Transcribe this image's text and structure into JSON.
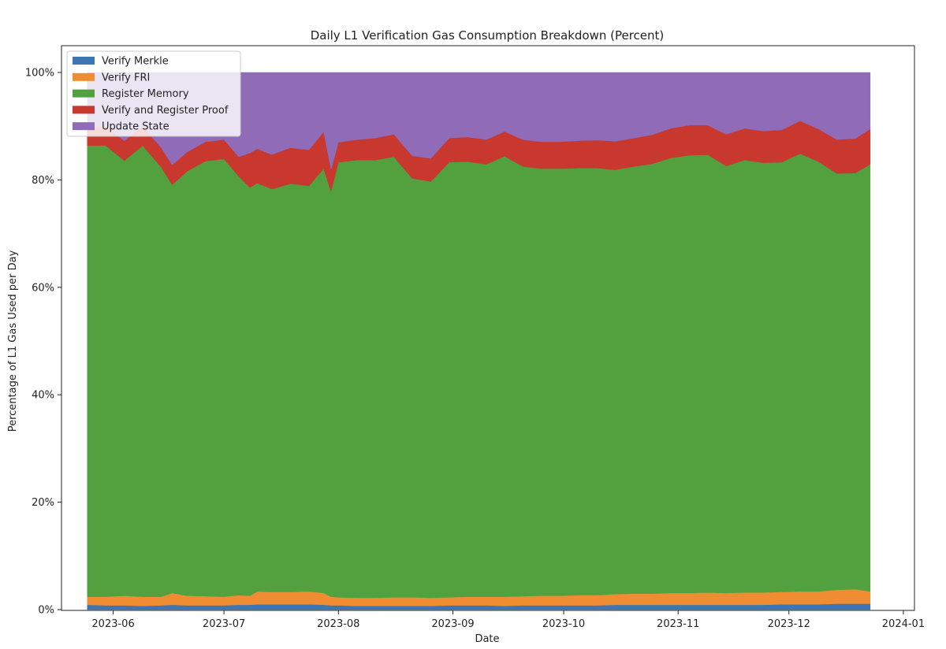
{
  "chart_data": {
    "type": "area",
    "stacked": true,
    "normalized_percent": true,
    "title": "Daily L1 Verification Gas Consumption Breakdown (Percent)",
    "xlabel": "Date",
    "ylabel": "Percentage of L1 Gas Used per Day",
    "ylim": [
      0,
      100
    ],
    "xlim": [
      "2023-05-18",
      "2024-01-04"
    ],
    "x_tick_labels": [
      "2023-06",
      "2023-07",
      "2023-08",
      "2023-09",
      "2023-10",
      "2023-11",
      "2023-12",
      "2024-01"
    ],
    "x_tick_dates": [
      "2023-06-01",
      "2023-07-01",
      "2023-08-01",
      "2023-09-01",
      "2023-10-01",
      "2023-11-01",
      "2023-12-01",
      "2024-01-01"
    ],
    "y_ticks": [
      0,
      20,
      40,
      60,
      80,
      100
    ],
    "y_tick_labels": [
      "0%",
      "20%",
      "40%",
      "60%",
      "80%",
      "100%"
    ],
    "legend_position": "upper-left",
    "grid": false,
    "x": [
      "2023-05-25",
      "2023-05-30",
      "2023-06-04",
      "2023-06-09",
      "2023-06-14",
      "2023-06-17",
      "2023-06-21",
      "2023-06-26",
      "2023-07-01",
      "2023-07-05",
      "2023-07-08",
      "2023-07-10",
      "2023-07-14",
      "2023-07-19",
      "2023-07-24",
      "2023-07-28",
      "2023-07-30",
      "2023-08-01",
      "2023-08-06",
      "2023-08-11",
      "2023-08-16",
      "2023-08-21",
      "2023-08-26",
      "2023-08-31",
      "2023-09-05",
      "2023-09-10",
      "2023-09-15",
      "2023-09-20",
      "2023-09-25",
      "2023-09-30",
      "2023-10-05",
      "2023-10-10",
      "2023-10-15",
      "2023-10-20",
      "2023-10-25",
      "2023-10-30",
      "2023-11-04",
      "2023-11-09",
      "2023-11-14",
      "2023-11-19",
      "2023-11-24",
      "2023-11-29",
      "2023-12-04",
      "2023-12-09",
      "2023-12-14",
      "2023-12-19",
      "2023-12-23"
    ],
    "series": [
      {
        "name": "Verify Merkle",
        "color": "#3e75b3",
        "values": [
          0.9,
          0.8,
          0.8,
          0.7,
          0.8,
          0.9,
          0.8,
          0.8,
          0.8,
          0.9,
          0.9,
          1.0,
          1.0,
          1.0,
          1.0,
          0.9,
          0.8,
          0.8,
          0.7,
          0.7,
          0.7,
          0.7,
          0.7,
          0.8,
          0.8,
          0.8,
          0.7,
          0.8,
          0.8,
          0.8,
          0.8,
          0.8,
          0.9,
          0.9,
          0.9,
          0.9,
          0.9,
          0.9,
          0.9,
          0.9,
          0.9,
          1.0,
          1.0,
          1.0,
          1.1,
          1.1,
          1.1
        ]
      },
      {
        "name": "Verify FRI",
        "color": "#f08c32",
        "values": [
          1.5,
          1.6,
          1.8,
          1.7,
          1.6,
          2.2,
          1.8,
          1.7,
          1.6,
          1.8,
          1.7,
          2.4,
          2.3,
          2.3,
          2.4,
          2.2,
          1.6,
          1.5,
          1.5,
          1.5,
          1.6,
          1.6,
          1.5,
          1.5,
          1.6,
          1.6,
          1.7,
          1.7,
          1.8,
          1.8,
          1.9,
          1.9,
          2.0,
          2.1,
          2.1,
          2.2,
          2.2,
          2.3,
          2.2,
          2.3,
          2.3,
          2.3,
          2.4,
          2.4,
          2.6,
          2.7,
          2.3
        ]
      },
      {
        "name": "Register Memory",
        "color": "#53a03f",
        "values": [
          84.0,
          84.0,
          81.0,
          84.0,
          80.0,
          76.0,
          79.0,
          81.0,
          81.5,
          78.0,
          76.0,
          76.0,
          75.0,
          76.0,
          75.5,
          79.0,
          75.5,
          81.0,
          81.5,
          81.5,
          82.0,
          78.0,
          77.5,
          81.0,
          81.0,
          80.5,
          82.0,
          80.0,
          79.5,
          79.5,
          79.5,
          79.5,
          79.0,
          79.5,
          80.0,
          81.0,
          81.5,
          81.5,
          79.5,
          80.5,
          80.0,
          80.0,
          81.5,
          80.0,
          77.5,
          77.5,
          79.5
        ]
      },
      {
        "name": "Verify and Register Proof",
        "color": "#c8382f",
        "values": [
          3.6,
          3.6,
          3.7,
          3.6,
          3.6,
          3.7,
          3.6,
          3.6,
          3.6,
          3.6,
          6.4,
          6.4,
          6.4,
          6.7,
          6.7,
          6.9,
          4.1,
          3.7,
          3.8,
          4.1,
          4.2,
          4.2,
          4.3,
          4.5,
          4.6,
          4.6,
          4.6,
          5.0,
          5.0,
          5.0,
          5.1,
          5.2,
          5.3,
          5.3,
          5.4,
          5.5,
          5.6,
          5.5,
          5.9,
          5.9,
          5.9,
          6.0,
          6.1,
          6.1,
          6.3,
          6.4,
          6.6
        ]
      },
      {
        "name": "Update State",
        "color": "#8f6bb8",
        "values": [
          10.0,
          10.0,
          12.7,
          10.0,
          14.0,
          17.2,
          14.8,
          12.9,
          12.5,
          15.7,
          15.0,
          14.2,
          15.3,
          14.0,
          14.4,
          11.0,
          18.0,
          13.0,
          12.5,
          12.2,
          11.5,
          15.5,
          16.0,
          12.2,
          12.0,
          12.5,
          11.0,
          12.5,
          12.9,
          12.9,
          12.7,
          12.6,
          12.8,
          12.2,
          11.6,
          10.4,
          9.8,
          9.8,
          11.5,
          10.4,
          10.9,
          10.7,
          9.0,
          10.5,
          12.5,
          12.3,
          10.5
        ]
      }
    ]
  }
}
